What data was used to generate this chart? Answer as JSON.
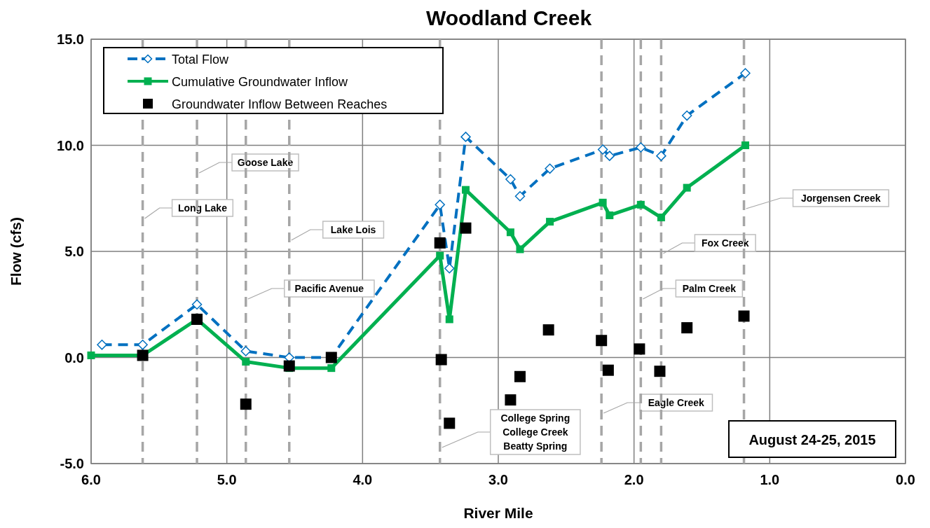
{
  "chart_data": {
    "type": "line",
    "title": "Woodland Creek",
    "xlabel": "River Mile",
    "ylabel": "Flow (cfs)",
    "xlim": [
      6,
      0
    ],
    "xticks": [
      {
        "value": 6,
        "label": "6.0"
      },
      {
        "value": 5,
        "label": "5.0"
      },
      {
        "value": 4,
        "label": "4.0"
      },
      {
        "value": 3,
        "label": "3.0"
      },
      {
        "value": 2,
        "label": "2.0"
      },
      {
        "value": 1,
        "label": "1.0"
      },
      {
        "value": 0,
        "label": "0.0"
      }
    ],
    "ylim": [
      -5,
      15
    ],
    "yticks": [
      {
        "value": -5,
        "label": "-5.0"
      },
      {
        "value": 0,
        "label": "0.0"
      },
      {
        "value": 5,
        "label": "5.0"
      },
      {
        "value": 10,
        "label": "10.0"
      },
      {
        "value": 15,
        "label": "15.0"
      }
    ],
    "grid": true,
    "legend": "top left",
    "series": [
      {
        "name": "Total Flow",
        "type": "line",
        "color": "#0070c0",
        "line_style": "dashed",
        "marker": "diamond",
        "x": [
          5.92,
          5.62,
          5.22,
          4.86,
          4.54,
          4.23,
          3.43,
          3.36,
          3.24,
          2.91,
          2.84,
          2.62,
          2.23,
          2.18,
          1.95,
          1.8,
          1.61,
          1.18
        ],
        "values": [
          0.6,
          0.6,
          2.5,
          0.3,
          0.0,
          0.0,
          7.2,
          4.2,
          10.4,
          8.4,
          7.6,
          8.9,
          9.8,
          9.5,
          9.9,
          9.5,
          11.4,
          13.4
        ]
      },
      {
        "name": "Cumulative Groundwater Inflow",
        "type": "line",
        "color": "#00b050",
        "line_style": "solid",
        "marker": "square",
        "x": [
          6.0,
          5.62,
          5.22,
          4.86,
          4.54,
          4.23,
          3.43,
          3.36,
          3.24,
          2.91,
          2.84,
          2.62,
          2.23,
          2.18,
          1.95,
          1.8,
          1.61,
          1.18
        ],
        "values": [
          0.1,
          0.1,
          1.8,
          -0.2,
          -0.5,
          -0.5,
          4.8,
          1.8,
          7.9,
          5.9,
          5.1,
          6.4,
          7.3,
          6.7,
          7.2,
          6.6,
          8.0,
          10.0
        ]
      },
      {
        "name": "Groundwater Inflow Between Reaches",
        "type": "scatter",
        "color": "#000000",
        "marker": "square",
        "x": [
          5.62,
          5.22,
          4.86,
          4.54,
          4.23,
          3.43,
          3.42,
          3.36,
          3.24,
          2.91,
          2.84,
          2.63,
          2.24,
          2.19,
          1.96,
          1.81,
          1.61,
          1.19
        ],
        "values": [
          0.1,
          1.8,
          -2.2,
          -0.4,
          0.0,
          5.4,
          -0.1,
          -3.1,
          6.1,
          -2.0,
          -0.9,
          1.3,
          0.8,
          -0.6,
          0.4,
          -0.65,
          1.4,
          1.95
        ]
      }
    ],
    "ref_lines": [
      {
        "axis": "x",
        "value": 5.62,
        "label": "Long Lake",
        "color": "#a6a6a6",
        "line_style": "dashed"
      },
      {
        "axis": "x",
        "value": 5.22,
        "label": "Goose Lake",
        "color": "#a6a6a6",
        "line_style": "dashed"
      },
      {
        "axis": "x",
        "value": 4.86,
        "label": "Pacific Avenue",
        "color": "#a6a6a6",
        "line_style": "dashed"
      },
      {
        "axis": "x",
        "value": 4.54,
        "label": "Lake Lois",
        "color": "#a6a6a6",
        "line_style": "dashed"
      },
      {
        "axis": "x",
        "value": 3.43,
        "label": "College Spring\nCollege Creek\nBeatty Spring",
        "color": "#a6a6a6",
        "line_style": "dashed"
      },
      {
        "axis": "x",
        "value": 2.24,
        "label": "Eagle Creek",
        "color": "#a6a6a6",
        "line_style": "dashed"
      },
      {
        "axis": "x",
        "value": 1.95,
        "label": "Palm Creek",
        "color": "#a6a6a6",
        "line_style": "dashed"
      },
      {
        "axis": "x",
        "value": 1.8,
        "label": "Fox Creek",
        "color": "#a6a6a6",
        "line_style": "dashed"
      },
      {
        "axis": "x",
        "value": 1.19,
        "label": "Jorgensen Creek",
        "color": "#a6a6a6",
        "line_style": "dashed"
      }
    ],
    "annotations": [
      "August 24-25, 2015"
    ]
  }
}
